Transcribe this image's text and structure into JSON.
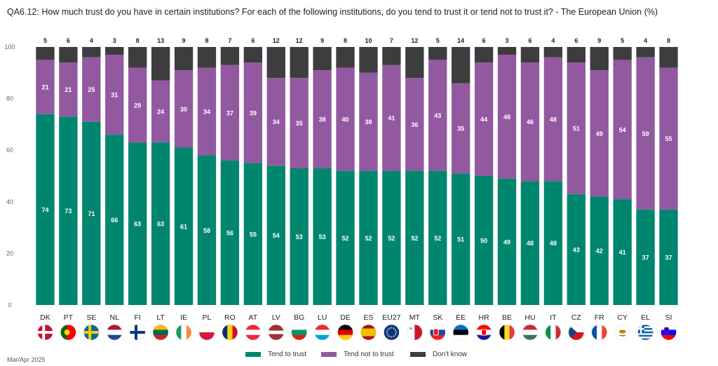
{
  "title": "QA6.12: How much trust do you have in certain institutions? For each of the following institutions, do you tend to trust it or tend not to trust it? - The European Union (%)",
  "footer_note": "Mar/Apr 2025",
  "colors": {
    "trust": "#00866F",
    "not_trust": "#9359A0",
    "dont_know": "#3D3D3F",
    "axis_text": "#666666",
    "grid": "#DDDDDD"
  },
  "legend": [
    {
      "label": "Tend to trust",
      "color": "#00866F"
    },
    {
      "label": "Tend not to trust",
      "color": "#9359A0"
    },
    {
      "label": "Don't know",
      "color": "#3D3D3F"
    }
  ],
  "chart_data": {
    "type": "bar",
    "stacked": true,
    "categories": [
      "DK",
      "PT",
      "SE",
      "NL",
      "FI",
      "LT",
      "IE",
      "PL",
      "RO",
      "AT",
      "LV",
      "BG",
      "LU",
      "DE",
      "ES",
      "EU27",
      "MT",
      "SK",
      "EE",
      "HR",
      "BE",
      "HU",
      "IT",
      "CZ",
      "FR",
      "CY",
      "EL",
      "SI"
    ],
    "series": [
      {
        "name": "Tend to trust",
        "values": [
          74,
          73,
          71,
          66,
          63,
          63,
          61,
          58,
          56,
          55,
          54,
          53,
          53,
          52,
          52,
          52,
          52,
          52,
          51,
          50,
          49,
          48,
          48,
          43,
          42,
          41,
          37,
          37
        ]
      },
      {
        "name": "Tend not to trust",
        "values": [
          21,
          21,
          25,
          31,
          29,
          24,
          30,
          34,
          37,
          39,
          34,
          35,
          38,
          40,
          38,
          41,
          36,
          43,
          35,
          44,
          48,
          46,
          48,
          51,
          49,
          54,
          59,
          55
        ]
      },
      {
        "name": "Don't know",
        "values": [
          5,
          6,
          4,
          3,
          8,
          13,
          9,
          8,
          7,
          6,
          12,
          12,
          9,
          8,
          10,
          7,
          12,
          5,
          14,
          6,
          3,
          6,
          4,
          6,
          9,
          5,
          4,
          8
        ]
      }
    ],
    "ylim": [
      0,
      100
    ],
    "yticks": [
      0,
      20,
      40,
      60,
      80,
      100
    ],
    "flags": [
      "DK",
      "PT",
      "SE",
      "NL",
      "FI",
      "LT",
      "IE",
      "PL",
      "RO",
      "AT",
      "LV",
      "BG",
      "LU",
      "DE",
      "ES",
      "EU27",
      "MT",
      "SK",
      "EE",
      "HR",
      "BE",
      "HU",
      "IT",
      "CZ",
      "FR",
      "CY",
      "EL",
      "SI"
    ]
  }
}
